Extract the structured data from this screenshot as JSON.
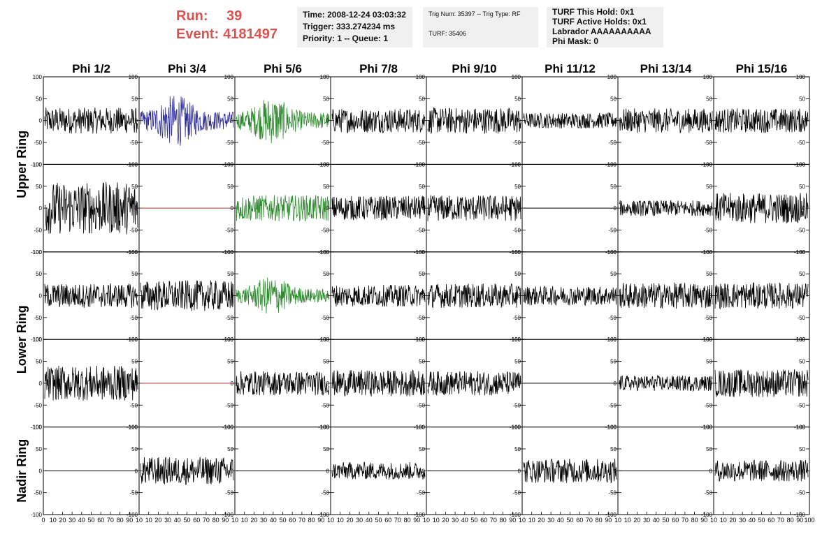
{
  "header": {
    "run_label": "Run:",
    "run_value": "39",
    "event_label": "Event:",
    "event_value": "4181497",
    "time_box": [
      "Time: 2008-12-24 03:03:32",
      "Trigger: 333.274234 ms",
      "Priority: 1 -- Queue: 1"
    ],
    "trig_box": [
      "Trig Num: 35397 -- Trig Type: RF",
      "",
      "TURF: 35406"
    ],
    "turf_box": [
      "TURF This Hold: 0x1",
      "TURF Active Holds: 0x1",
      "Labrador AAAAAAAAAA",
      "Phi Mask: 0"
    ]
  },
  "colors": {
    "text_red": "#d9534f",
    "trace_black": "#000000",
    "trace_blue": "#2b2b9a",
    "trace_green": "#2e8b2e",
    "trace_red": "#b03030",
    "box_bg": "#f0f0f0"
  },
  "chart_data": {
    "type": "line",
    "columns": [
      "Phi 1/2",
      "Phi 3/4",
      "Phi 5/6",
      "Phi 7/8",
      "Phi 9/10",
      "Phi 11/12",
      "Phi 13/14",
      "Phi 15/16"
    ],
    "row_groups": [
      {
        "label": "Upper Ring",
        "rows": [
          0,
          1
        ]
      },
      {
        "label": "Lower Ring",
        "rows": [
          2,
          3
        ]
      },
      {
        "label": "Nadir Ring",
        "rows": [
          4
        ]
      }
    ],
    "ylim": [
      -100,
      100
    ],
    "xlim": [
      0,
      100
    ],
    "y_ticks": [
      100,
      50,
      0,
      -50,
      -100
    ],
    "x_ticks": [
      0,
      10,
      20,
      30,
      40,
      50,
      60,
      70,
      80,
      90,
      100
    ],
    "x_tick_labels": [
      "10",
      "20",
      "30",
      "40",
      "50",
      "60",
      "70",
      "80",
      "90",
      "10"
    ],
    "first_x_tick_label": "0",
    "last_x_tick_label": "100",
    "panels": [
      [
        {
          "color": "black",
          "amp": 30,
          "env": "flat"
        },
        {
          "color": "blue",
          "amp": 60,
          "env": "burst"
        },
        {
          "color": "green",
          "amp": 55,
          "env": "burst"
        },
        {
          "color": "black",
          "amp": 28,
          "env": "flat"
        },
        {
          "color": "black",
          "amp": 30,
          "env": "flat"
        },
        {
          "color": "black",
          "amp": 18,
          "env": "flat"
        },
        {
          "color": "black",
          "amp": 28,
          "env": "flat"
        },
        {
          "color": "black",
          "amp": 28,
          "env": "flat"
        }
      ],
      [
        {
          "color": "black",
          "amp": 60,
          "env": "flat"
        },
        {
          "color": "red",
          "amp": 0,
          "env": "dead"
        },
        {
          "color": "green",
          "amp": 30,
          "env": "flat"
        },
        {
          "color": "black",
          "amp": 28,
          "env": "flat"
        },
        {
          "color": "black",
          "amp": 30,
          "env": "flat"
        },
        {
          "color": "black",
          "amp": 0,
          "env": "dead"
        },
        {
          "color": "black",
          "amp": 18,
          "env": "flat"
        },
        {
          "color": "black",
          "amp": 35,
          "env": "flat"
        }
      ],
      [
        {
          "color": "black",
          "amp": 28,
          "env": "flat"
        },
        {
          "color": "black",
          "amp": 35,
          "env": "flat"
        },
        {
          "color": "green",
          "amp": 45,
          "env": "burst"
        },
        {
          "color": "black",
          "amp": 25,
          "env": "flat"
        },
        {
          "color": "black",
          "amp": 28,
          "env": "flat"
        },
        {
          "color": "black",
          "amp": 22,
          "env": "flat"
        },
        {
          "color": "black",
          "amp": 30,
          "env": "flat"
        },
        {
          "color": "black",
          "amp": 30,
          "env": "flat"
        }
      ],
      [
        {
          "color": "black",
          "amp": 40,
          "env": "flat"
        },
        {
          "color": "red",
          "amp": 0,
          "env": "dead"
        },
        {
          "color": "black",
          "amp": 28,
          "env": "flat"
        },
        {
          "color": "black",
          "amp": 30,
          "env": "flat"
        },
        {
          "color": "black",
          "amp": 28,
          "env": "flat"
        },
        {
          "color": "black",
          "amp": 0,
          "env": "dead"
        },
        {
          "color": "black",
          "amp": 18,
          "env": "flat"
        },
        {
          "color": "black",
          "amp": 32,
          "env": "flat"
        }
      ],
      [
        {
          "color": "black",
          "amp": 0,
          "env": "dead"
        },
        {
          "color": "black",
          "amp": 32,
          "env": "flat"
        },
        {
          "color": "black",
          "amp": 0,
          "env": "dead"
        },
        {
          "color": "black",
          "amp": 20,
          "env": "flat"
        },
        {
          "color": "black",
          "amp": 0,
          "env": "dead"
        },
        {
          "color": "black",
          "amp": 28,
          "env": "flat"
        },
        {
          "color": "black",
          "amp": 0,
          "env": "dead"
        },
        {
          "color": "black",
          "amp": 25,
          "env": "flat"
        }
      ]
    ]
  }
}
